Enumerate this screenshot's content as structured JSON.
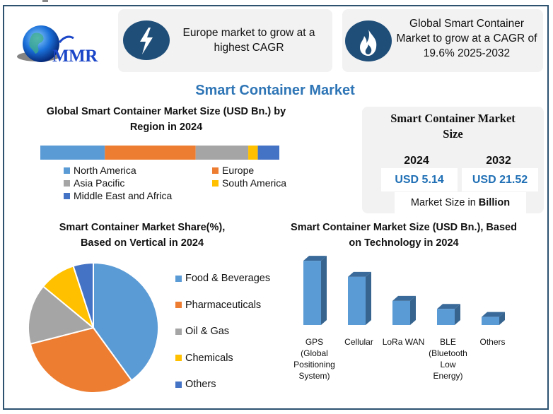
{
  "header": {
    "logo_text": "MMR",
    "card_europe": {
      "icon": "lightning-bolt-icon",
      "text": "Europe market to grow at a highest CAGR"
    },
    "card_cagr": {
      "icon": "flame-icon",
      "text": "Global Smart Container Market to grow at a CAGR of 19.6% 2025-2032"
    }
  },
  "main_title": "Smart Container Market",
  "market_size": {
    "title": "Smart Container Market Size",
    "years": [
      {
        "year": "2024",
        "value": "USD 5.14"
      },
      {
        "year": "2032",
        "value": "USD 21.52"
      }
    ],
    "note_prefix": "Market Size in ",
    "note_bold": "Billion"
  },
  "colors": {
    "frame": "#2c5270",
    "title_blue": "#2e75b6",
    "value_blue": "#1f6fb5",
    "icon_circle": "#1f4e79",
    "blue": "#5b9bd5",
    "orange": "#ed7d31",
    "gray": "#a5a5a5",
    "yellow": "#ffc000",
    "dark_blue": "#4472c4"
  },
  "chart_data": [
    {
      "type": "bar",
      "orientation": "horizontal-stacked-100",
      "title": "Global Smart Container Market Size (USD Bn.) by Region in 2024",
      "categories": [
        "North America",
        "Europe",
        "Asia Pacific",
        "South America",
        "Middle East and Africa"
      ],
      "values": [
        27,
        38,
        22,
        4,
        9
      ],
      "unit": "% share (estimated)",
      "colors": [
        "#5b9bd5",
        "#ed7d31",
        "#a5a5a5",
        "#ffc000",
        "#4472c4"
      ],
      "legend": "bottom"
    },
    {
      "type": "pie",
      "title": "Smart Container Market Share(%), Based on Vertical in 2024",
      "categories": [
        "Food & Beverages",
        "Pharmaceuticals",
        "Oil & Gas",
        "Chemicals",
        "Others"
      ],
      "values": [
        40,
        31,
        15,
        9,
        5
      ],
      "colors": [
        "#5b9bd5",
        "#ed7d31",
        "#a5a5a5",
        "#ffc000",
        "#4472c4"
      ],
      "legend": "right"
    },
    {
      "type": "bar",
      "style": "3d-column",
      "title": "Smart Container Market Size (USD Bn.), Based on Technology in 2024",
      "categories": [
        "GPS (Global Positioning System)",
        "Cellular",
        "LoRa WAN",
        "BLE (Bluetooth Low Energy)",
        "Others"
      ],
      "values": [
        2.0,
        1.5,
        0.75,
        0.5,
        0.25
      ],
      "ylim": [
        0,
        2.2
      ],
      "xlabel": "",
      "ylabel": "",
      "grid": false,
      "color": "#5b9bd5"
    }
  ]
}
